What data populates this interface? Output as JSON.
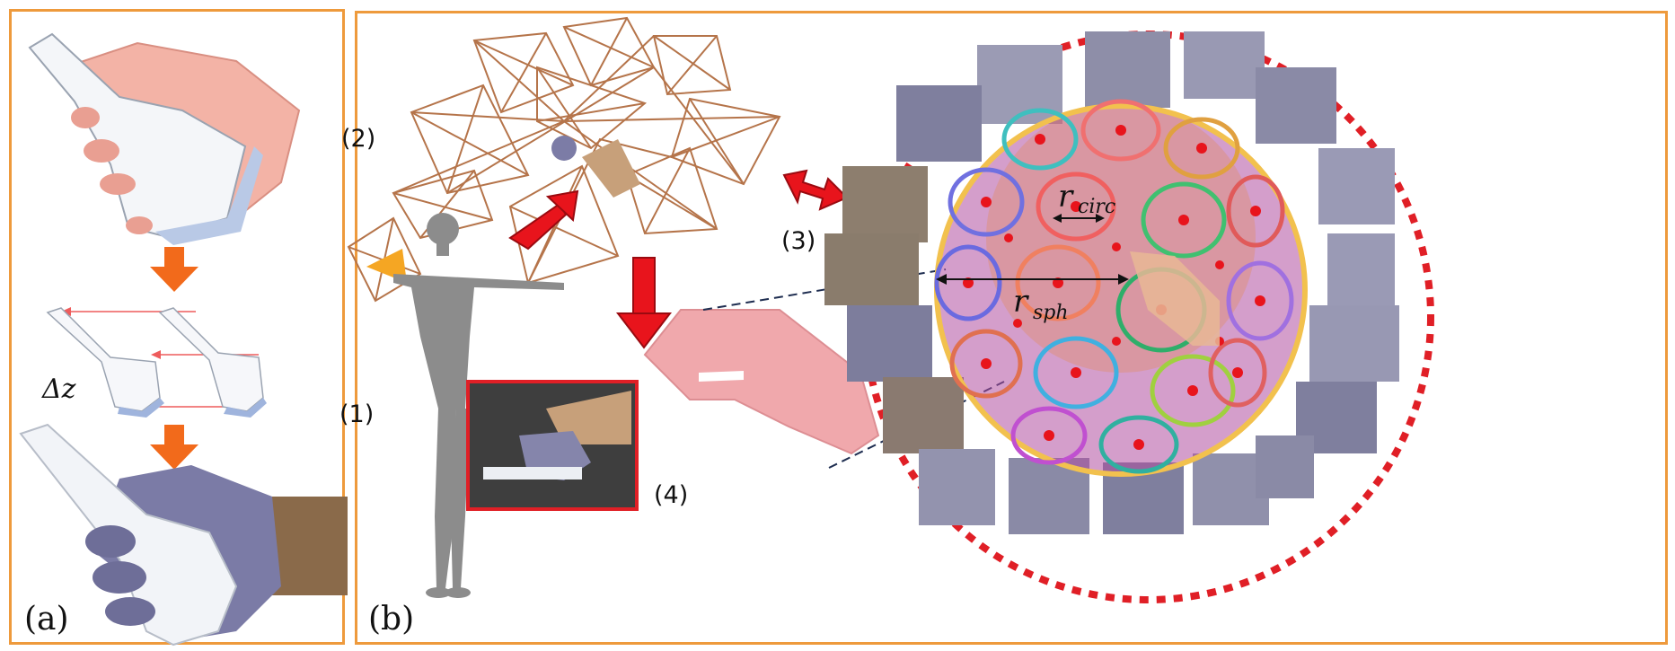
{
  "panel_a": {
    "label": "(a)",
    "delta_label": "Δz",
    "arrow_color": "#f26a1b"
  },
  "panel_b": {
    "label": "(b)",
    "steps": [
      "(1)",
      "(2)",
      "(3)",
      "(4)"
    ],
    "r_circ_main": "r",
    "r_circ_sub": "circ",
    "r_sph_main": "r",
    "r_sph_sub": "sph",
    "frame_color": "#b5744a",
    "arrow_color": "#e8141c",
    "sphere_dash_color": "#e01f26"
  },
  "colors": {
    "border": "#ee9a3c",
    "hand_pink": "#f0a8ac",
    "glove": "#7f7fa6",
    "probe": "#eef1f6",
    "mannequin": "#8c8c8c"
  }
}
